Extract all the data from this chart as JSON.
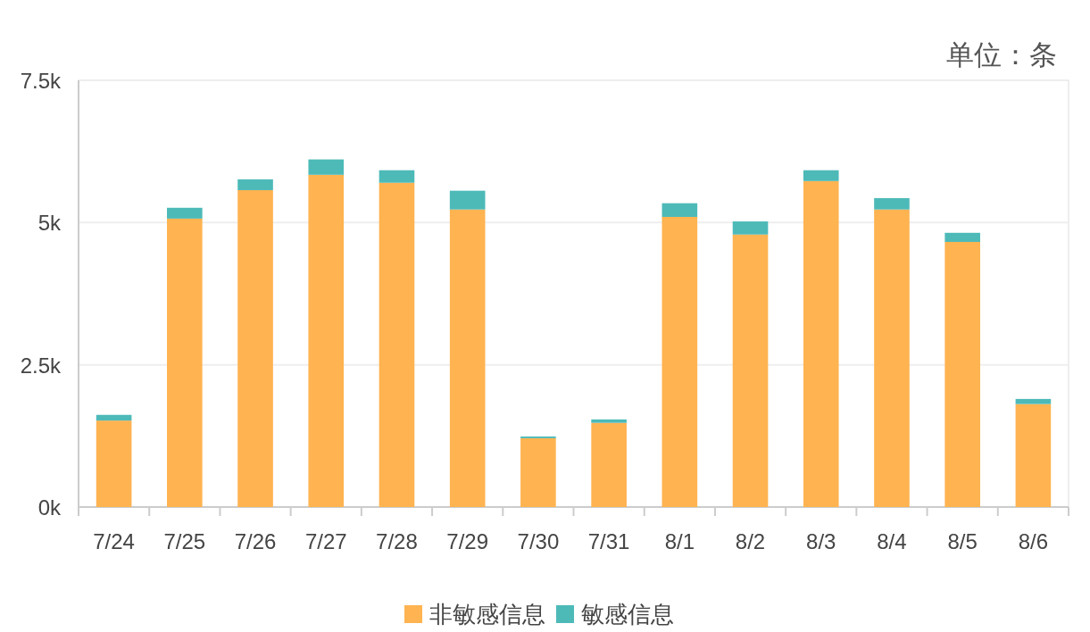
{
  "chart_data": {
    "type": "bar",
    "stacked": true,
    "categories": [
      "7/24",
      "7/25",
      "7/26",
      "7/27",
      "7/28",
      "7/29",
      "7/30",
      "7/31",
      "8/1",
      "8/2",
      "8/3",
      "8/4",
      "8/5",
      "8/6"
    ],
    "series": [
      {
        "name": "非敏感信息",
        "color": "#ffb351",
        "values": [
          1520,
          5070,
          5570,
          5840,
          5700,
          5230,
          1210,
          1480,
          5100,
          4790,
          5730,
          5230,
          4660,
          1810
        ]
      },
      {
        "name": "敏感信息",
        "color": "#4dbab8",
        "values": [
          100,
          190,
          190,
          270,
          220,
          330,
          30,
          60,
          240,
          230,
          190,
          200,
          160,
          90
        ]
      }
    ],
    "ylim": [
      0,
      7500
    ],
    "yticks": [
      {
        "value": 0,
        "label": "0k"
      },
      {
        "value": 2500,
        "label": "2.5k"
      },
      {
        "value": 5000,
        "label": "5k"
      },
      {
        "value": 7500,
        "label": "7.5k"
      }
    ],
    "grid": "y",
    "legend": "bottom",
    "annotations": [
      "单位：条"
    ]
  }
}
